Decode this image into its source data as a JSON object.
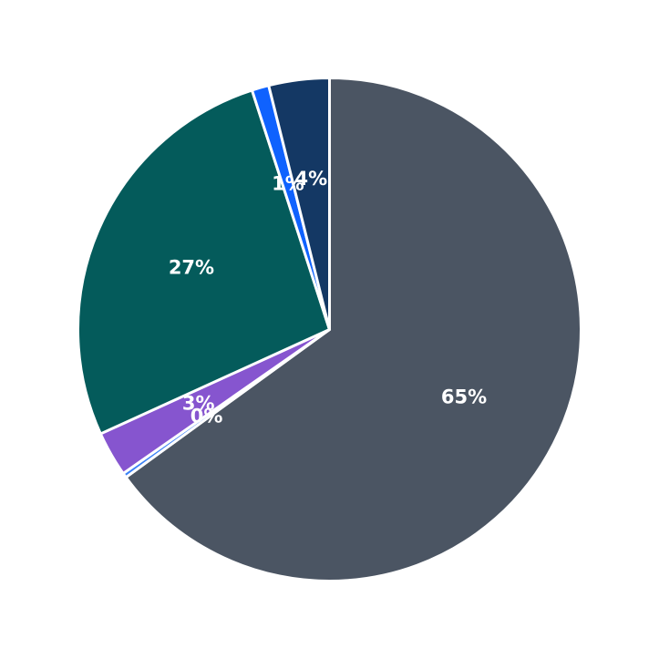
{
  "chart_data": {
    "type": "pie",
    "title": "",
    "start_angle_deg": 90,
    "direction": "clockwise",
    "slices": [
      {
        "value": 65.2,
        "label": "65%",
        "color": "#4b5563"
      },
      {
        "value": 0.3,
        "label": "0%",
        "color": "#3b82f6"
      },
      {
        "value": 2.9,
        "label": "3%",
        "color": "#8655cf"
      },
      {
        "value": 26.9,
        "label": "27%",
        "color": "#045b5b"
      },
      {
        "value": 1.1,
        "label": "1%",
        "color": "#0f62fe"
      },
      {
        "value": 3.9,
        "label": "4%",
        "color": "#143864"
      }
    ]
  }
}
